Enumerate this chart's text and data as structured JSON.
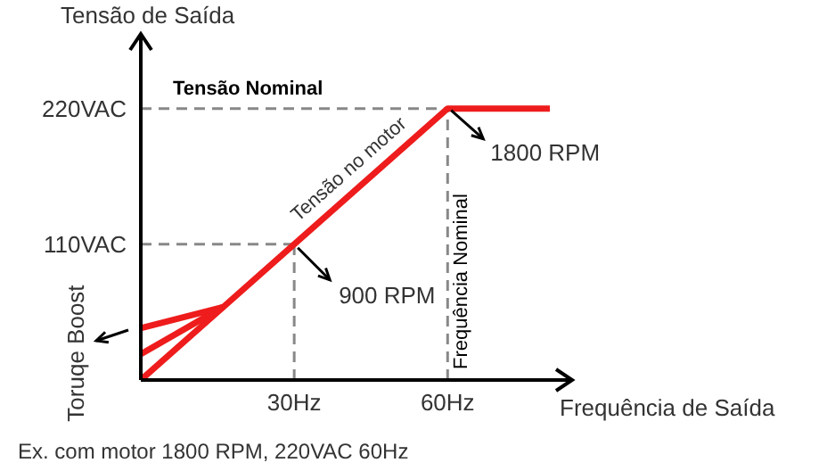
{
  "chart_data": {
    "type": "line",
    "ylabel": "Tensão de Saída",
    "xlabel": "Frequência de Saída",
    "xlim": [
      0,
      84
    ],
    "ylim": [
      0,
      279
    ],
    "xticks": [
      {
        "value": 30,
        "label": "30Hz"
      },
      {
        "value": 60,
        "label": "60Hz"
      }
    ],
    "yticks": [
      {
        "value": 110,
        "label": "110VAC"
      },
      {
        "value": 220,
        "label": "220VAC"
      }
    ],
    "grid": false,
    "series": [
      {
        "color": "#ee1c1c",
        "x": [
          0,
          60,
          80
        ],
        "values": [
          0,
          220,
          220
        ]
      },
      {
        "color": "#ee1c1c",
        "x": [
          0,
          16
        ],
        "values": [
          42,
          59
        ]
      },
      {
        "color": "#ee1c1c",
        "x": [
          0,
          16
        ],
        "values": [
          21,
          59
        ]
      }
    ],
    "ref_lines": [
      {
        "axis": "y",
        "value": 220,
        "label": "Tensão Nominal",
        "color": "#888888",
        "line_style": "dashed"
      },
      {
        "axis": "x",
        "value": 60,
        "label": "Frequência Nominal",
        "color": "#888888",
        "line_style": "dashed"
      },
      {
        "axis": "y",
        "value": 110,
        "color": "#888888",
        "line_style": "dashed"
      },
      {
        "axis": "x",
        "value": 30,
        "color": "#888888",
        "line_style": "dashed"
      }
    ],
    "annotations": [
      "Tensão no motor",
      {
        "text": "1800 RPM",
        "x": 60,
        "y": 220
      },
      {
        "text": "900 RPM",
        "x": 30,
        "y": 110
      },
      "Toruqe Boost",
      "Ex. com motor 1800 RPM, 220VAC 60Hz"
    ]
  }
}
